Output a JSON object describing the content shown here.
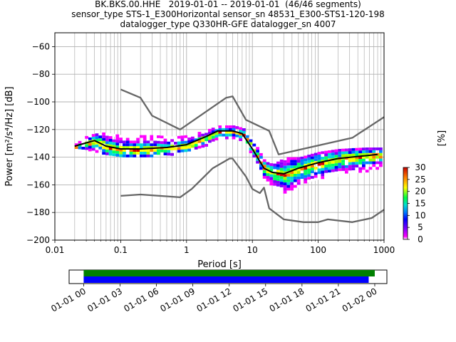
{
  "chart_data": [
    {
      "type": "heatmap",
      "title_lines": [
        "BK.BKS.00.HHE   2019-01-01 -- 2019-01-01  (46/46 segments)",
        "sensor_type STS-1_E300Horizontal sensor_sn 48531_E300-STS1-120-198",
        "datalogger_type Q330HR-GFE datalogger_sn 4007"
      ],
      "xlabel": "Period [s]",
      "ylabel": "Power [m²/s⁴/Hz] [dB]",
      "x_scale": "log",
      "xlim": [
        0.01,
        1000
      ],
      "ylim": [
        -200,
        -50
      ],
      "x_ticks": [
        0.01,
        0.1,
        1,
        10,
        100,
        1000
      ],
      "x_tick_labels": [
        "0.01",
        "0.1",
        "1",
        "10",
        "100",
        "1000"
      ],
      "y_ticks": [
        -200,
        -180,
        -160,
        -140,
        -120,
        -100,
        -80,
        -60
      ],
      "y_tick_labels": [
        "−200",
        "−180",
        "−160",
        "−140",
        "−120",
        "−100",
        "−80",
        "−60"
      ],
      "grid": true,
      "colorbar": {
        "label": "[%]",
        "range": [
          0,
          30
        ],
        "ticks": [
          0,
          5,
          10,
          15,
          20,
          25,
          30
        ],
        "tick_labels": [
          "0",
          "5",
          "10",
          "15",
          "20",
          "25",
          "30"
        ]
      },
      "series": [
        {
          "name": "",
          "color": "#666666",
          "x": [
            0.1,
            0.2,
            0.3,
            0.8,
            4.0,
            5.0,
            8.0,
            18.0,
            25.0,
            330.0,
            1000.0
          ],
          "values": [
            -91,
            -97,
            -110,
            -120,
            -97,
            -96,
            -113,
            -121,
            -138,
            -126,
            -111
          ]
        },
        {
          "name": "",
          "color": "#666666",
          "x": [
            0.1,
            0.2,
            0.8,
            1.2,
            2.5,
            4.5,
            5.0,
            8.0,
            10.0,
            13.0,
            15.0,
            18.0,
            30.0,
            60.0,
            100.0,
            140.0,
            330.0,
            650.0,
            1000.0
          ],
          "values": [
            -168,
            -167,
            -169,
            -163,
            -148,
            -141,
            -141,
            -154,
            -163,
            -166,
            -162,
            -177,
            -185,
            -187,
            -187,
            -185,
            -187,
            -184,
            -178
          ]
        },
        {
          "name": "",
          "color": "#000000",
          "x": [
            0.02,
            0.04,
            0.06,
            0.1,
            0.2,
            0.5,
            1.0,
            2.0,
            3.0,
            5.0,
            7.0,
            10.0,
            15.0,
            20.0,
            30.0,
            50.0,
            100.0,
            200.0,
            500.0,
            800.0
          ],
          "values": [
            -132,
            -128,
            -132,
            -134,
            -134,
            -133,
            -131,
            -125,
            -121,
            -121,
            -123,
            -134,
            -148,
            -151,
            -152,
            -148,
            -144,
            -141,
            -139,
            -138
          ]
        }
      ],
      "density_upper": {
        "x": [
          0.02,
          0.03,
          0.05,
          0.1,
          0.3,
          0.6,
          1.0,
          2.0,
          3.0,
          5.0,
          7.0,
          10.0,
          15.0,
          20.0,
          30.0,
          50.0,
          100.0,
          200.0,
          500.0,
          800.0
        ],
        "values": [
          -130,
          -124,
          -122,
          -124,
          -124,
          -125,
          -124,
          -120,
          -117,
          -117,
          -119,
          -128,
          -143,
          -145,
          -140,
          -140,
          -136,
          -134,
          -133,
          -133
        ]
      },
      "density_lower": {
        "x": [
          0.02,
          0.03,
          0.05,
          0.1,
          0.3,
          0.6,
          1.0,
          2.0,
          3.0,
          5.0,
          7.0,
          10.0,
          15.0,
          20.0,
          30.0,
          50.0,
          100.0,
          200.0,
          500.0,
          800.0
        ],
        "values": [
          -134,
          -134,
          -138,
          -140,
          -138,
          -137,
          -135,
          -130,
          -126,
          -126,
          -129,
          -140,
          -156,
          -162,
          -165,
          -160,
          -156,
          -152,
          -150,
          -147
        ]
      }
    },
    {
      "type": "bar",
      "orientation": "horizontal",
      "x_tick_labels": [
        "01-01 00",
        "01-01 03",
        "01-01 06",
        "01-01 09",
        "01-01 12",
        "01-01 15",
        "01-01 18",
        "01-01 21",
        "01-02 00"
      ],
      "x_ticks_hours": [
        0,
        3,
        6,
        9,
        12,
        15,
        18,
        21,
        24
      ],
      "xlim_hours": [
        -1.2,
        25.0
      ],
      "series": [
        {
          "name": "",
          "color": "#008000",
          "start_hours": 0,
          "end_hours": 24.0
        },
        {
          "name": "",
          "color": "#0000ff",
          "start_hours": 0,
          "end_hours": 23.5
        }
      ]
    }
  ]
}
